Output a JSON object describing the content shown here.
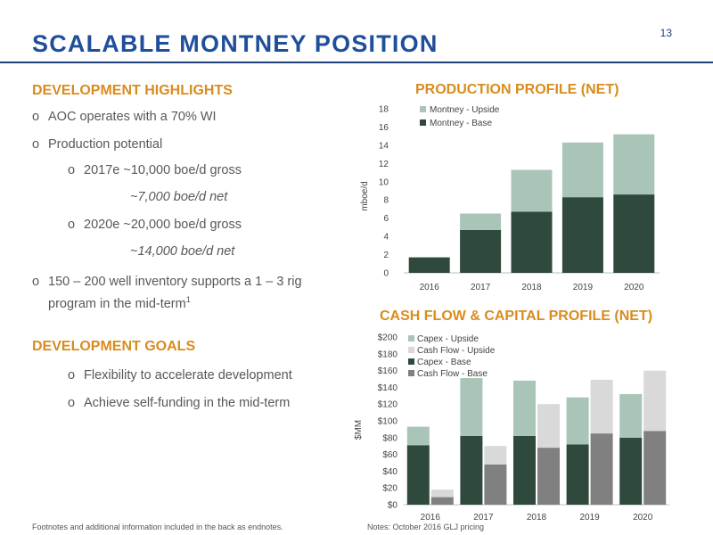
{
  "page_number": "13",
  "title": "SCALABLE MONTNEY POSITION",
  "highlights": {
    "heading": "DEVELOPMENT HIGHLIGHTS",
    "b1": "AOC operates with a 70% WI",
    "b2": "Production potential",
    "s1": "2017e  ~10,000 boe/d gross",
    "s1net": "~7,000 boe/d net",
    "s2": "2020e  ~20,000 boe/d gross",
    "s2net": "~14,000 boe/d net",
    "b3_line1": "150 – 200  well inventory supports a 1 – 3 rig",
    "b3_line2": "program in the mid-term",
    "b3_sup": "1",
    "bullet_glyph": "o"
  },
  "goals": {
    "heading": "DEVELOPMENT GOALS",
    "g1": "Flexibility to accelerate development",
    "g2": "Achieve self-funding in the mid-term"
  },
  "footer": {
    "left": "Footnotes and additional information included in the back as endnotes.",
    "right": "Notes: October 2016 GLJ pricing"
  },
  "colors": {
    "title": "#1f4e9b",
    "accent": "#d98c1e",
    "base": "#2f4a3d",
    "upside": "#a9c5b8",
    "cf_base": "#808080",
    "cf_upside": "#d9d9d9"
  },
  "chart_data": [
    {
      "type": "bar",
      "stacked": true,
      "title": "PRODUCTION PROFILE (NET)",
      "ylabel": "mboe/d",
      "xlabel": "",
      "ylim": [
        0,
        18
      ],
      "yticks": [
        0,
        2,
        4,
        6,
        8,
        10,
        12,
        14,
        16,
        18
      ],
      "grid": false,
      "legend": "top-left",
      "categories": [
        "2016",
        "2017",
        "2018",
        "2019",
        "2020"
      ],
      "series": [
        {
          "name": "Montney - Base",
          "values": [
            1.7,
            4.7,
            6.7,
            8.3,
            8.6
          ]
        },
        {
          "name": "Montney - Upside",
          "values": [
            0,
            1.8,
            4.6,
            6.0,
            6.6
          ]
        }
      ]
    },
    {
      "type": "bar",
      "title": "CASH FLOW & CAPITAL PROFILE (NET)",
      "ylabel": "$MM",
      "xlabel": "",
      "ylim": [
        0,
        200
      ],
      "yticks": [
        "$0",
        "$20",
        "$40",
        "$60",
        "$80",
        "$100",
        "$120",
        "$140",
        "$160",
        "$180",
        "$200"
      ],
      "grid": false,
      "legend": "top-left",
      "categories": [
        "2016",
        "2017",
        "2018",
        "2019",
        "2020"
      ],
      "stacks": [
        {
          "series": [
            {
              "name": "Capex - Base",
              "values": [
                71,
                82,
                82,
                72,
                80
              ]
            },
            {
              "name": "Capex - Upside",
              "values": [
                22,
                69,
                66,
                56,
                52
              ]
            }
          ]
        },
        {
          "series": [
            {
              "name": "Cash Flow - Base",
              "values": [
                9,
                48,
                68,
                85,
                88
              ]
            },
            {
              "name": "Cash Flow - Upside",
              "values": [
                9,
                22,
                52,
                64,
                72
              ]
            }
          ]
        }
      ]
    }
  ]
}
